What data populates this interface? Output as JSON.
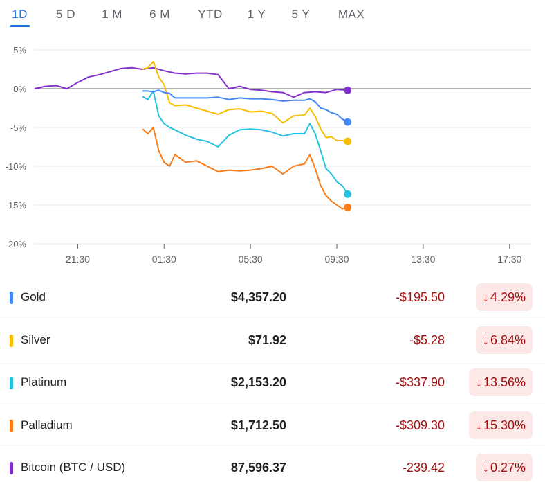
{
  "tabs": [
    {
      "label": "1D",
      "active": true
    },
    {
      "label": "5 D"
    },
    {
      "label": "1 M"
    },
    {
      "label": "6 M"
    },
    {
      "label": "YTD"
    },
    {
      "label": "1 Y"
    },
    {
      "label": "5 Y"
    },
    {
      "label": "MAX"
    }
  ],
  "chart_data": {
    "type": "line",
    "ylim": [
      -20,
      5
    ],
    "yticks": [
      5,
      0,
      -5,
      -10,
      -15,
      -20
    ],
    "ytick_labels": [
      "5%",
      "0%",
      "-5%",
      "-10%",
      "-15%",
      "-20%"
    ],
    "x_range": [
      "19:30",
      "18:30"
    ],
    "xticks": [
      "21:30",
      "01:30",
      "05:30",
      "09:30",
      "13:30",
      "17:30"
    ],
    "grid": true,
    "colors": {
      "gold": "#4285f4",
      "silver": "#fbbc04",
      "platinum": "#24c1e0",
      "palladium": "#fa7b17",
      "bitcoin": "#8430ce"
    },
    "series": [
      {
        "name": "Gold",
        "key": "gold",
        "x": [
          "00:30",
          "00:45",
          "01:00",
          "01:15",
          "01:30",
          "01:45",
          "02:00",
          "02:30",
          "03:00",
          "03:30",
          "04:00",
          "04:30",
          "05:00",
          "05:30",
          "06:00",
          "06:30",
          "07:00",
          "07:30",
          "08:00",
          "08:15",
          "08:30",
          "08:45",
          "09:00",
          "09:15",
          "09:30",
          "09:45",
          "10:00"
        ],
        "values": [
          -0.3,
          -0.3,
          -0.4,
          -0.2,
          -0.5,
          -0.6,
          -1.2,
          -1.2,
          -1.2,
          -1.2,
          -1.1,
          -1.4,
          -1.2,
          -1.3,
          -1.3,
          -1.4,
          -1.6,
          -1.5,
          -1.5,
          -1.3,
          -1.7,
          -2.5,
          -2.7,
          -3.1,
          -3.3,
          -3.9,
          -4.3
        ]
      },
      {
        "name": "Silver",
        "key": "silver",
        "x": [
          "00:30",
          "00:45",
          "01:00",
          "01:15",
          "01:30",
          "01:45",
          "02:00",
          "02:30",
          "03:00",
          "03:30",
          "04:00",
          "04:30",
          "05:00",
          "05:30",
          "06:00",
          "06:30",
          "07:00",
          "07:30",
          "08:00",
          "08:15",
          "08:30",
          "08:45",
          "09:00",
          "09:15",
          "09:30",
          "09:45",
          "10:00"
        ],
        "values": [
          2.5,
          2.7,
          3.5,
          1.5,
          0.5,
          -1.8,
          -2.2,
          -2.1,
          -2.5,
          -2.9,
          -3.3,
          -2.7,
          -2.6,
          -3.0,
          -2.9,
          -3.2,
          -4.4,
          -3.5,
          -3.4,
          -2.5,
          -3.6,
          -5.2,
          -6.3,
          -6.2,
          -6.7,
          -6.7,
          -6.8
        ]
      },
      {
        "name": "Platinum",
        "key": "platinum",
        "x": [
          "00:30",
          "00:45",
          "01:00",
          "01:15",
          "01:30",
          "01:45",
          "02:00",
          "02:30",
          "03:00",
          "03:30",
          "04:00",
          "04:30",
          "05:00",
          "05:30",
          "06:00",
          "06:30",
          "07:00",
          "07:30",
          "08:00",
          "08:15",
          "08:30",
          "08:45",
          "09:00",
          "09:15",
          "09:30",
          "09:45",
          "10:00"
        ],
        "values": [
          -1.0,
          -1.4,
          -0.3,
          -3.5,
          -4.5,
          -5.0,
          -5.3,
          -6.0,
          -6.5,
          -6.8,
          -7.5,
          -6.0,
          -5.3,
          -5.2,
          -5.3,
          -5.6,
          -6.1,
          -5.8,
          -5.8,
          -4.5,
          -5.8,
          -8.0,
          -10.3,
          -11.0,
          -12.0,
          -12.5,
          -13.6
        ]
      },
      {
        "name": "Palladium",
        "key": "palladium",
        "x": [
          "00:30",
          "00:45",
          "01:00",
          "01:15",
          "01:30",
          "01:45",
          "02:00",
          "02:30",
          "03:00",
          "03:30",
          "04:00",
          "04:30",
          "05:00",
          "05:30",
          "06:00",
          "06:30",
          "07:00",
          "07:30",
          "08:00",
          "08:15",
          "08:30",
          "08:45",
          "09:00",
          "09:15",
          "09:30",
          "09:45",
          "10:00"
        ],
        "values": [
          -5.2,
          -5.8,
          -5.0,
          -8.0,
          -9.5,
          -10.0,
          -8.5,
          -9.5,
          -9.3,
          -10.0,
          -10.7,
          -10.5,
          -10.6,
          -10.5,
          -10.3,
          -10.0,
          -11.0,
          -10.0,
          -9.7,
          -8.5,
          -10.3,
          -12.5,
          -13.8,
          -14.5,
          -15.0,
          -15.5,
          -15.3
        ]
      },
      {
        "name": "Bitcoin (BTC / USD)",
        "key": "bitcoin",
        "x": [
          "19:30",
          "20:00",
          "20:30",
          "21:00",
          "21:30",
          "22:00",
          "22:30",
          "23:00",
          "23:30",
          "00:00",
          "00:30",
          "01:00",
          "01:30",
          "02:00",
          "02:30",
          "03:00",
          "03:30",
          "04:00",
          "04:30",
          "05:00",
          "05:30",
          "06:00",
          "06:30",
          "07:00",
          "07:30",
          "08:00",
          "08:30",
          "09:00",
          "09:30",
          "10:00"
        ],
        "values": [
          0.0,
          0.3,
          0.4,
          0.0,
          0.8,
          1.5,
          1.8,
          2.2,
          2.6,
          2.7,
          2.5,
          2.7,
          2.3,
          2.0,
          1.9,
          2.0,
          2.0,
          1.8,
          0.0,
          0.3,
          -0.1,
          -0.2,
          -0.4,
          -0.5,
          -1.1,
          -0.5,
          -0.4,
          -0.5,
          -0.1,
          -0.2
        ]
      }
    ]
  },
  "table": {
    "rows": [
      {
        "key": "gold",
        "name": "Gold",
        "price": "$4,357.20",
        "change": "-$195.50",
        "pct": "4.29%",
        "arrow": "↓"
      },
      {
        "key": "silver",
        "name": "Silver",
        "price": "$71.92",
        "change": "-$5.28",
        "pct": "6.84%",
        "arrow": "↓"
      },
      {
        "key": "platinum",
        "name": "Platinum",
        "price": "$2,153.20",
        "change": "-$337.90",
        "pct": "13.56%",
        "arrow": "↓"
      },
      {
        "key": "palladium",
        "name": "Palladium",
        "price": "$1,712.50",
        "change": "-$309.30",
        "pct": "15.30%",
        "arrow": "↓"
      },
      {
        "key": "bitcoin",
        "name": "Bitcoin (BTC / USD)",
        "price": "87,596.37",
        "change": "-239.42",
        "pct": "0.27%",
        "arrow": "↓"
      }
    ]
  }
}
